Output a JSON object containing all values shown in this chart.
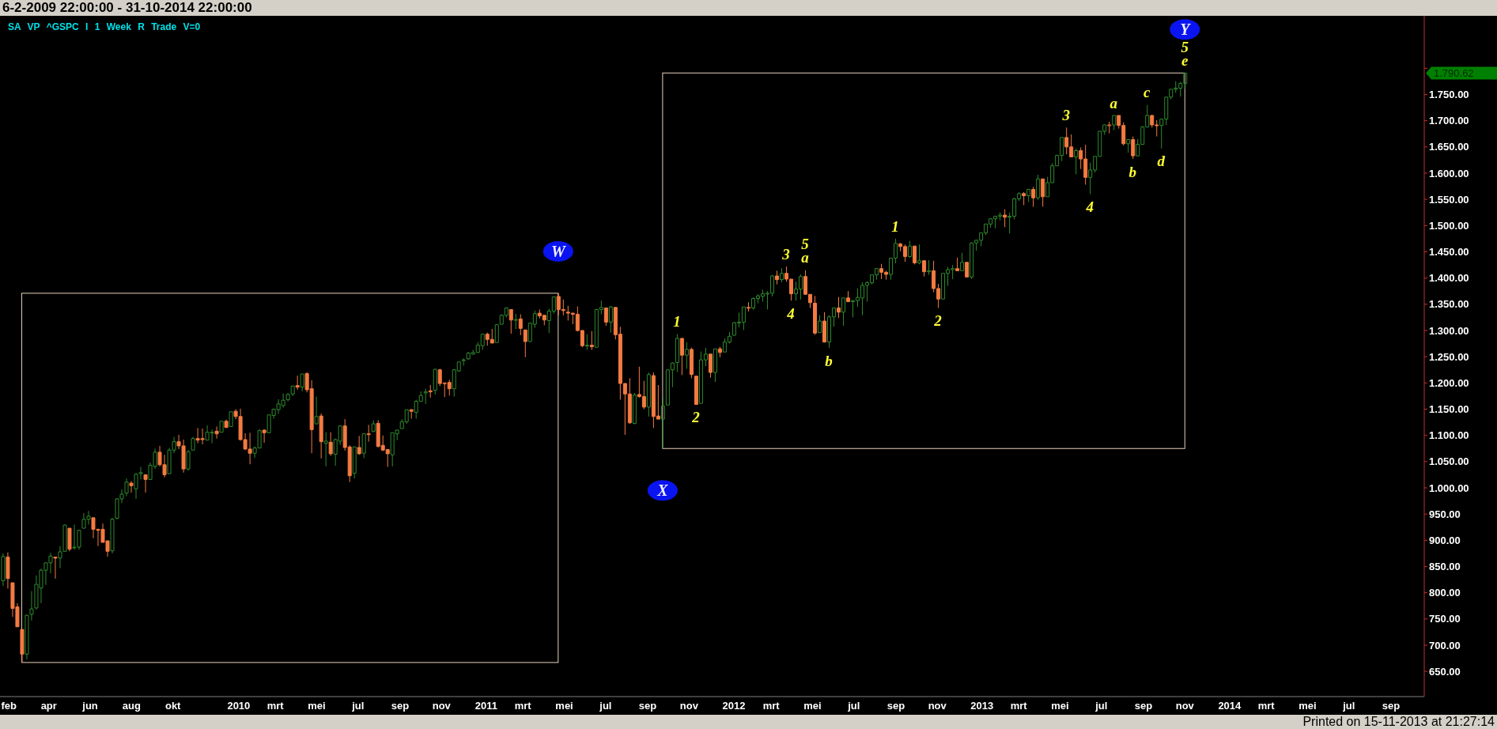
{
  "chart_data": {
    "type": "candlestick",
    "title": "6-2-2009 22:00:00 - 31-10-2014 22:00:00",
    "subtitle": "SA VP ^GSPC I 1 Week R Trade V=0",
    "x": [
      "2009-02-06",
      "2009-02-13",
      "2009-02-20",
      "2009-02-27",
      "2009-03-06",
      "2009-03-13",
      "2009-03-20",
      "2009-03-27",
      "2009-04-03",
      "2009-04-10",
      "2009-04-17",
      "2009-04-24",
      "2009-05-01",
      "2009-05-08",
      "2009-05-15",
      "2009-05-22",
      "2009-05-29",
      "2009-06-05",
      "2009-06-12",
      "2009-06-19",
      "2009-06-26",
      "2009-07-03",
      "2009-07-10",
      "2009-07-17",
      "2009-07-24",
      "2009-07-31",
      "2009-08-07",
      "2009-08-14",
      "2009-08-21",
      "2009-08-28",
      "2009-09-04",
      "2009-09-11",
      "2009-09-18",
      "2009-09-25",
      "2009-10-02",
      "2009-10-09",
      "2009-10-16",
      "2009-10-23",
      "2009-10-30",
      "2009-11-06",
      "2009-11-13",
      "2009-11-20",
      "2009-11-27",
      "2009-12-04",
      "2009-12-11",
      "2009-12-18",
      "2009-12-25",
      "2010-01-01",
      "2010-01-08",
      "2010-01-15",
      "2010-01-22",
      "2010-01-29",
      "2010-02-05",
      "2010-02-12",
      "2010-02-19",
      "2010-02-26",
      "2010-03-05",
      "2010-03-12",
      "2010-03-19",
      "2010-03-26",
      "2010-04-02",
      "2010-04-09",
      "2010-04-16",
      "2010-04-23",
      "2010-04-30",
      "2010-05-07",
      "2010-05-14",
      "2010-05-21",
      "2010-05-28",
      "2010-06-04",
      "2010-06-11",
      "2010-06-18",
      "2010-06-25",
      "2010-07-02",
      "2010-07-09",
      "2010-07-16",
      "2010-07-23",
      "2010-07-30",
      "2010-08-06",
      "2010-08-13",
      "2010-08-20",
      "2010-08-27",
      "2010-09-03",
      "2010-09-10",
      "2010-09-17",
      "2010-09-24",
      "2010-10-01",
      "2010-10-08",
      "2010-10-15",
      "2010-10-22",
      "2010-10-29",
      "2010-11-05",
      "2010-11-12",
      "2010-11-19",
      "2010-11-26",
      "2010-12-03",
      "2010-12-10",
      "2010-12-17",
      "2010-12-24",
      "2010-12-31",
      "2011-01-07",
      "2011-01-14",
      "2011-01-21",
      "2011-01-28",
      "2011-02-04",
      "2011-02-11",
      "2011-02-18",
      "2011-02-25",
      "2011-03-04",
      "2011-03-11",
      "2011-03-18",
      "2011-03-25",
      "2011-04-01",
      "2011-04-08",
      "2011-04-15",
      "2011-04-22",
      "2011-04-29",
      "2011-05-06",
      "2011-05-13",
      "2011-05-20",
      "2011-05-27",
      "2011-06-03",
      "2011-06-10",
      "2011-06-17",
      "2011-06-24",
      "2011-07-01",
      "2011-07-08",
      "2011-07-15",
      "2011-07-22",
      "2011-07-29",
      "2011-08-05",
      "2011-08-12",
      "2011-08-19",
      "2011-08-26",
      "2011-09-02",
      "2011-09-09",
      "2011-09-16",
      "2011-09-23",
      "2011-09-30",
      "2011-10-07",
      "2011-10-14",
      "2011-10-21",
      "2011-10-28",
      "2011-11-04",
      "2011-11-11",
      "2011-11-18",
      "2011-11-25",
      "2011-12-02",
      "2011-12-09",
      "2011-12-16",
      "2011-12-23",
      "2011-12-30",
      "2012-01-06",
      "2012-01-13",
      "2012-01-20",
      "2012-01-27",
      "2012-02-03",
      "2012-02-10",
      "2012-02-17",
      "2012-02-24",
      "2012-03-02",
      "2012-03-09",
      "2012-03-16",
      "2012-03-23",
      "2012-03-30",
      "2012-04-06",
      "2012-04-13",
      "2012-04-20",
      "2012-04-27",
      "2012-05-04",
      "2012-05-11",
      "2012-05-18",
      "2012-05-25",
      "2012-06-01",
      "2012-06-08",
      "2012-06-15",
      "2012-06-22",
      "2012-06-29",
      "2012-07-06",
      "2012-07-13",
      "2012-07-20",
      "2012-07-27",
      "2012-08-03",
      "2012-08-10",
      "2012-08-17",
      "2012-08-24",
      "2012-08-31",
      "2012-09-07",
      "2012-09-14",
      "2012-09-21",
      "2012-09-28",
      "2012-10-05",
      "2012-10-12",
      "2012-10-19",
      "2012-10-26",
      "2012-11-02",
      "2012-11-09",
      "2012-11-16",
      "2012-11-23",
      "2012-11-30",
      "2012-12-07",
      "2012-12-14",
      "2012-12-21",
      "2012-12-28",
      "2013-01-04",
      "2013-01-11",
      "2013-01-18",
      "2013-01-25",
      "2013-02-01",
      "2013-02-08",
      "2013-02-15",
      "2013-02-22",
      "2013-03-01",
      "2013-03-08",
      "2013-03-15",
      "2013-03-22",
      "2013-03-29",
      "2013-04-05",
      "2013-04-12",
      "2013-04-19",
      "2013-04-26",
      "2013-05-03",
      "2013-05-10",
      "2013-05-17",
      "2013-05-24",
      "2013-05-31",
      "2013-06-07",
      "2013-06-14",
      "2013-06-21",
      "2013-06-28",
      "2013-07-05",
      "2013-07-12",
      "2013-07-19",
      "2013-07-26",
      "2013-08-02",
      "2013-08-09",
      "2013-08-16",
      "2013-08-23",
      "2013-08-30",
      "2013-09-06",
      "2013-09-13",
      "2013-09-20",
      "2013-09-27",
      "2013-10-04",
      "2013-10-11",
      "2013-10-18",
      "2013-10-25",
      "2013-11-01",
      "2013-11-08",
      "2013-11-15"
    ],
    "ohlc": [
      [
        823,
        875,
        813,
        869
      ],
      [
        868,
        877,
        808,
        827
      ],
      [
        819,
        819,
        754,
        770
      ],
      [
        773,
        780,
        735,
        735
      ],
      [
        730,
        730,
        667,
        683
      ],
      [
        683,
        758,
        673,
        757
      ],
      [
        759,
        803,
        747,
        769
      ],
      [
        771,
        833,
        768,
        816
      ],
      [
        809,
        846,
        780,
        843
      ],
      [
        843,
        857,
        815,
        857
      ],
      [
        857,
        876,
        837,
        870
      ],
      [
        868,
        868,
        827,
        866
      ],
      [
        866,
        889,
        847,
        878
      ],
      [
        879,
        930,
        879,
        929
      ],
      [
        923,
        923,
        879,
        883
      ],
      [
        886,
        930,
        882,
        887
      ],
      [
        887,
        920,
        882,
        919
      ],
      [
        923,
        952,
        923,
        940
      ],
      [
        940,
        956,
        930,
        946
      ],
      [
        943,
        943,
        904,
        921
      ],
      [
        921,
        922,
        889,
        919
      ],
      [
        921,
        932,
        896,
        896
      ],
      [
        899,
        899,
        869,
        879
      ],
      [
        880,
        943,
        875,
        940
      ],
      [
        942,
        980,
        940,
        979
      ],
      [
        979,
        997,
        971,
        988
      ],
      [
        990,
        1018,
        984,
        1011
      ],
      [
        1009,
        1013,
        991,
        1004
      ],
      [
        998,
        1028,
        979,
        1026
      ],
      [
        1027,
        1040,
        1016,
        1029
      ],
      [
        1025,
        1025,
        991,
        1016
      ],
      [
        1016,
        1048,
        1016,
        1043
      ],
      [
        1041,
        1075,
        1036,
        1068
      ],
      [
        1068,
        1080,
        1041,
        1044
      ],
      [
        1044,
        1063,
        1020,
        1025
      ],
      [
        1027,
        1076,
        1027,
        1072
      ],
      [
        1072,
        1097,
        1066,
        1088
      ],
      [
        1088,
        1101,
        1074,
        1080
      ],
      [
        1080,
        1092,
        1029,
        1036
      ],
      [
        1036,
        1072,
        1033,
        1069
      ],
      [
        1072,
        1097,
        1072,
        1094
      ],
      [
        1094,
        1114,
        1085,
        1091
      ],
      [
        1094,
        1113,
        1083,
        1092
      ],
      [
        1091,
        1119,
        1091,
        1106
      ],
      [
        1105,
        1111,
        1085,
        1106
      ],
      [
        1108,
        1117,
        1094,
        1103
      ],
      [
        1106,
        1127,
        1106,
        1127
      ],
      [
        1127,
        1130,
        1115,
        1115
      ],
      [
        1117,
        1145,
        1117,
        1145
      ],
      [
        1146,
        1150,
        1131,
        1136
      ],
      [
        1136,
        1151,
        1090,
        1092
      ],
      [
        1092,
        1104,
        1072,
        1074
      ],
      [
        1074,
        1105,
        1045,
        1066
      ],
      [
        1066,
        1079,
        1057,
        1076
      ],
      [
        1076,
        1112,
        1076,
        1109
      ],
      [
        1110,
        1112,
        1086,
        1105
      ],
      [
        1105,
        1139,
        1105,
        1139
      ],
      [
        1138,
        1151,
        1132,
        1150
      ],
      [
        1149,
        1169,
        1141,
        1160
      ],
      [
        1157,
        1180,
        1153,
        1167
      ],
      [
        1168,
        1181,
        1165,
        1178
      ],
      [
        1179,
        1195,
        1175,
        1194
      ],
      [
        1195,
        1214,
        1187,
        1192
      ],
      [
        1192,
        1217,
        1184,
        1217
      ],
      [
        1218,
        1220,
        1182,
        1187
      ],
      [
        1189,
        1205,
        1066,
        1111
      ],
      [
        1122,
        1174,
        1122,
        1136
      ],
      [
        1137,
        1142,
        1056,
        1088
      ],
      [
        1085,
        1106,
        1041,
        1089
      ],
      [
        1087,
        1106,
        1061,
        1065
      ],
      [
        1064,
        1094,
        1042,
        1092
      ],
      [
        1089,
        1119,
        1082,
        1118
      ],
      [
        1118,
        1131,
        1071,
        1077
      ],
      [
        1078,
        1081,
        1011,
        1023
      ],
      [
        1028,
        1078,
        1018,
        1078
      ],
      [
        1077,
        1099,
        1063,
        1065
      ],
      [
        1066,
        1104,
        1057,
        1103
      ],
      [
        1103,
        1120,
        1088,
        1102
      ],
      [
        1108,
        1129,
        1106,
        1122
      ],
      [
        1123,
        1129,
        1077,
        1079
      ],
      [
        1081,
        1100,
        1070,
        1072
      ],
      [
        1073,
        1074,
        1040,
        1065
      ],
      [
        1063,
        1105,
        1041,
        1105
      ],
      [
        1103,
        1111,
        1091,
        1110
      ],
      [
        1113,
        1131,
        1113,
        1126
      ],
      [
        1126,
        1149,
        1122,
        1149
      ],
      [
        1149,
        1150,
        1132,
        1146
      ],
      [
        1144,
        1168,
        1132,
        1165
      ],
      [
        1165,
        1184,
        1165,
        1176
      ],
      [
        1181,
        1189,
        1160,
        1183
      ],
      [
        1185,
        1196,
        1172,
        1183
      ],
      [
        1186,
        1227,
        1178,
        1226
      ],
      [
        1225,
        1227,
        1194,
        1199
      ],
      [
        1200,
        1201,
        1173,
        1200
      ],
      [
        1201,
        1206,
        1176,
        1189
      ],
      [
        1189,
        1226,
        1174,
        1225
      ],
      [
        1223,
        1240,
        1221,
        1240
      ],
      [
        1243,
        1247,
        1233,
        1244
      ],
      [
        1246,
        1259,
        1244,
        1257
      ],
      [
        1255,
        1263,
        1254,
        1258
      ],
      [
        1258,
        1278,
        1258,
        1272
      ],
      [
        1271,
        1293,
        1263,
        1293
      ],
      [
        1293,
        1296,
        1271,
        1283
      ],
      [
        1283,
        1303,
        1276,
        1276
      ],
      [
        1277,
        1311,
        1277,
        1311
      ],
      [
        1312,
        1331,
        1312,
        1329
      ],
      [
        1329,
        1344,
        1325,
        1343
      ],
      [
        1340,
        1340,
        1294,
        1320
      ],
      [
        1320,
        1332,
        1303,
        1321
      ],
      [
        1322,
        1331,
        1291,
        1304
      ],
      [
        1301,
        1301,
        1249,
        1279
      ],
      [
        1279,
        1315,
        1279,
        1314
      ],
      [
        1312,
        1338,
        1305,
        1332
      ],
      [
        1333,
        1340,
        1323,
        1328
      ],
      [
        1329,
        1329,
        1310,
        1320
      ],
      [
        1319,
        1341,
        1295,
        1337
      ],
      [
        1337,
        1365,
        1332,
        1364
      ],
      [
        1365,
        1371,
        1329,
        1340
      ],
      [
        1340,
        1359,
        1329,
        1338
      ],
      [
        1335,
        1347,
        1319,
        1333
      ],
      [
        1333,
        1334,
        1312,
        1331
      ],
      [
        1331,
        1346,
        1298,
        1300
      ],
      [
        1300,
        1300,
        1268,
        1271
      ],
      [
        1271,
        1293,
        1263,
        1272
      ],
      [
        1272,
        1299,
        1263,
        1269
      ],
      [
        1268,
        1341,
        1268,
        1340
      ],
      [
        1340,
        1357,
        1331,
        1344
      ],
      [
        1343,
        1343,
        1309,
        1316
      ],
      [
        1316,
        1347,
        1296,
        1345
      ],
      [
        1344,
        1344,
        1283,
        1292
      ],
      [
        1293,
        1307,
        1168,
        1199
      ],
      [
        1199,
        1199,
        1101,
        1179
      ],
      [
        1179,
        1209,
        1122,
        1124
      ],
      [
        1123,
        1181,
        1121,
        1177
      ],
      [
        1178,
        1231,
        1172,
        1174
      ],
      [
        1174,
        1204,
        1150,
        1154
      ],
      [
        1154,
        1220,
        1136,
        1216
      ],
      [
        1214,
        1220,
        1114,
        1136
      ],
      [
        1137,
        1196,
        1131,
        1131
      ],
      [
        1131,
        1171,
        1075,
        1156
      ],
      [
        1158,
        1225,
        1158,
        1225
      ],
      [
        1225,
        1239,
        1192,
        1238
      ],
      [
        1239,
        1293,
        1221,
        1285
      ],
      [
        1285,
        1285,
        1215,
        1253
      ],
      [
        1253,
        1278,
        1227,
        1264
      ],
      [
        1264,
        1267,
        1209,
        1216
      ],
      [
        1213,
        1213,
        1159,
        1159
      ],
      [
        1161,
        1260,
        1161,
        1244
      ],
      [
        1244,
        1267,
        1232,
        1255
      ],
      [
        1255,
        1255,
        1210,
        1220
      ],
      [
        1220,
        1265,
        1202,
        1265
      ],
      [
        1265,
        1269,
        1249,
        1258
      ],
      [
        1259,
        1285,
        1259,
        1278
      ],
      [
        1278,
        1297,
        1275,
        1289
      ],
      [
        1291,
        1316,
        1290,
        1315
      ],
      [
        1315,
        1334,
        1306,
        1316
      ],
      [
        1316,
        1345,
        1301,
        1345
      ],
      [
        1344,
        1354,
        1336,
        1343
      ],
      [
        1343,
        1363,
        1340,
        1361
      ],
      [
        1361,
        1369,
        1352,
        1366
      ],
      [
        1365,
        1378,
        1355,
        1370
      ],
      [
        1370,
        1375,
        1340,
        1371
      ],
      [
        1371,
        1406,
        1365,
        1404
      ],
      [
        1404,
        1414,
        1388,
        1397
      ],
      [
        1397,
        1419,
        1392,
        1409
      ],
      [
        1409,
        1422,
        1393,
        1398
      ],
      [
        1398,
        1398,
        1357,
        1370
      ],
      [
        1370,
        1393,
        1357,
        1379
      ],
      [
        1379,
        1407,
        1359,
        1403
      ],
      [
        1403,
        1415,
        1368,
        1369
      ],
      [
        1369,
        1369,
        1343,
        1353
      ],
      [
        1352,
        1366,
        1292,
        1295
      ],
      [
        1296,
        1329,
        1296,
        1318
      ],
      [
        1318,
        1335,
        1277,
        1278
      ],
      [
        1278,
        1329,
        1267,
        1326
      ],
      [
        1326,
        1343,
        1307,
        1343
      ],
      [
        1343,
        1364,
        1324,
        1335
      ],
      [
        1335,
        1362,
        1309,
        1362
      ],
      [
        1362,
        1375,
        1354,
        1355
      ],
      [
        1355,
        1358,
        1325,
        1357
      ],
      [
        1357,
        1380,
        1345,
        1363
      ],
      [
        1362,
        1392,
        1329,
        1386
      ],
      [
        1386,
        1394,
        1355,
        1391
      ],
      [
        1391,
        1406,
        1388,
        1406
      ],
      [
        1406,
        1419,
        1397,
        1418
      ],
      [
        1418,
        1427,
        1398,
        1411
      ],
      [
        1411,
        1414,
        1397,
        1407
      ],
      [
        1407,
        1438,
        1397,
        1438
      ],
      [
        1438,
        1475,
        1428,
        1466
      ],
      [
        1465,
        1467,
        1451,
        1460
      ],
      [
        1460,
        1464,
        1431,
        1441
      ],
      [
        1441,
        1471,
        1439,
        1461
      ],
      [
        1461,
        1461,
        1426,
        1429
      ],
      [
        1429,
        1464,
        1426,
        1433
      ],
      [
        1433,
        1434,
        1403,
        1412
      ],
      [
        1412,
        1434,
        1406,
        1414
      ],
      [
        1414,
        1433,
        1373,
        1380
      ],
      [
        1380,
        1389,
        1343,
        1360
      ],
      [
        1360,
        1409,
        1360,
        1409
      ],
      [
        1409,
        1421,
        1385,
        1416
      ],
      [
        1416,
        1425,
        1398,
        1418
      ],
      [
        1418,
        1439,
        1413,
        1414
      ],
      [
        1414,
        1448,
        1414,
        1430
      ],
      [
        1430,
        1430,
        1402,
        1402
      ],
      [
        1402,
        1468,
        1398,
        1467
      ],
      [
        1467,
        1473,
        1452,
        1472
      ],
      [
        1472,
        1486,
        1461,
        1486
      ],
      [
        1486,
        1503,
        1482,
        1503
      ],
      [
        1503,
        1514,
        1496,
        1513
      ],
      [
        1513,
        1518,
        1495,
        1518
      ],
      [
        1518,
        1525,
        1510,
        1520
      ],
      [
        1520,
        1531,
        1497,
        1516
      ],
      [
        1516,
        1525,
        1485,
        1518
      ],
      [
        1518,
        1553,
        1512,
        1551
      ],
      [
        1551,
        1564,
        1547,
        1561
      ],
      [
        1561,
        1564,
        1539,
        1557
      ],
      [
        1557,
        1570,
        1545,
        1569
      ],
      [
        1569,
        1574,
        1536,
        1553
      ],
      [
        1553,
        1597,
        1549,
        1589
      ],
      [
        1589,
        1589,
        1536,
        1555
      ],
      [
        1555,
        1593,
        1555,
        1582
      ],
      [
        1582,
        1619,
        1581,
        1614
      ],
      [
        1614,
        1635,
        1614,
        1634
      ],
      [
        1634,
        1668,
        1623,
        1668
      ],
      [
        1668,
        1687,
        1636,
        1650
      ],
      [
        1650,
        1674,
        1631,
        1631
      ],
      [
        1631,
        1647,
        1598,
        1643
      ],
      [
        1643,
        1649,
        1608,
        1627
      ],
      [
        1627,
        1654,
        1578,
        1592
      ],
      [
        1592,
        1620,
        1560,
        1606
      ],
      [
        1606,
        1632,
        1601,
        1632
      ],
      [
        1632,
        1680,
        1632,
        1680
      ],
      [
        1680,
        1693,
        1673,
        1692
      ],
      [
        1692,
        1698,
        1676,
        1692
      ],
      [
        1692,
        1710,
        1682,
        1710
      ],
      [
        1710,
        1710,
        1685,
        1691
      ],
      [
        1691,
        1697,
        1653,
        1656
      ],
      [
        1656,
        1665,
        1639,
        1664
      ],
      [
        1664,
        1670,
        1627,
        1633
      ],
      [
        1633,
        1665,
        1633,
        1655
      ],
      [
        1655,
        1690,
        1655,
        1688
      ],
      [
        1688,
        1730,
        1688,
        1710
      ],
      [
        1710,
        1711,
        1687,
        1692
      ],
      [
        1692,
        1701,
        1670,
        1691
      ],
      [
        1691,
        1704,
        1647,
        1703
      ],
      [
        1703,
        1745,
        1692,
        1745
      ],
      [
        1745,
        1760,
        1741,
        1760
      ],
      [
        1760,
        1775,
        1753,
        1762
      ],
      [
        1762,
        1774,
        1746,
        1771
      ],
      [
        1771,
        1791,
        1761,
        1790.62
      ]
    ],
    "colors": [
      "#2e8b2e",
      "#f47b42",
      "#f47b42",
      "#f47b42",
      "#f47b42",
      "#2e8b2e",
      "#2e8b2e",
      "#2e8b2e",
      "#2e8b2e",
      "#2e8b2e",
      "#2e8b2e",
      "#f47b42",
      "#2e8b2e",
      "#2e8b2e",
      "#f47b42",
      "#2e8b2e",
      "#2e8b2e",
      "#2e8b2e",
      "#2e8b2e",
      "#f47b42",
      "#f47b42",
      "#f47b42",
      "#f47b42",
      "#2e8b2e",
      "#2e8b2e",
      "#2e8b2e",
      "#2e8b2e",
      "#f47b42",
      "#2e8b2e",
      "#2e8b2e",
      "#f47b42",
      "#2e8b2e",
      "#2e8b2e",
      "#f47b42",
      "#f47b42",
      "#2e8b2e",
      "#2e8b2e",
      "#f47b42",
      "#f47b42",
      "#2e8b2e",
      "#2e8b2e",
      "#f47b42",
      "#f47b42",
      "#2e8b2e",
      "#2e8b2e",
      "#f47b42",
      "#2e8b2e",
      "#f47b42",
      "#2e8b2e",
      "#f47b42",
      "#f47b42",
      "#f47b42",
      "#f47b42",
      "#2e8b2e",
      "#2e8b2e",
      "#f47b42",
      "#2e8b2e",
      "#2e8b2e",
      "#2e8b2e",
      "#2e8b2e",
      "#2e8b2e",
      "#2e8b2e",
      "#f47b42",
      "#2e8b2e",
      "#f47b42",
      "#f47b42",
      "#2e8b2e",
      "#f47b42",
      "#2e8b2e",
      "#f47b42",
      "#2e8b2e",
      "#2e8b2e",
      "#f47b42",
      "#f47b42",
      "#2e8b2e",
      "#f47b42",
      "#2e8b2e",
      "#f47b42",
      "#2e8b2e",
      "#f47b42",
      "#f47b42",
      "#f47b42",
      "#2e8b2e",
      "#2e8b2e",
      "#2e8b2e",
      "#2e8b2e",
      "#f47b42",
      "#2e8b2e",
      "#2e8b2e",
      "#2e8b2e",
      "#f47b42",
      "#2e8b2e",
      "#f47b42",
      "#f47b42",
      "#f47b42",
      "#2e8b2e",
      "#2e8b2e",
      "#2e8b2e",
      "#2e8b2e",
      "#2e8b2e",
      "#2e8b2e",
      "#2e8b2e",
      "#f47b42",
      "#f47b42",
      "#2e8b2e",
      "#2e8b2e",
      "#2e8b2e",
      "#f47b42",
      "#2e8b2e",
      "#f47b42",
      "#f47b42",
      "#2e8b2e",
      "#2e8b2e",
      "#f47b42",
      "#f47b42",
      "#2e8b2e",
      "#2e8b2e",
      "#f47b42",
      "#f47b42",
      "#f47b42",
      "#f47b42",
      "#f47b42",
      "#f47b42",
      "#2e8b2e",
      "#f47b42",
      "#2e8b2e",
      "#2e8b2e",
      "#f47b42",
      "#2e8b2e",
      "#f47b42",
      "#f47b42",
      "#f47b42",
      "#f47b42",
      "#2e8b2e",
      "#f47b42",
      "#f47b42",
      "#2e8b2e",
      "#f47b42",
      "#f47b42",
      "#2e8b2e",
      "#2e8b2e",
      "#2e8b2e",
      "#2e8b2e",
      "#f47b42",
      "#2e8b2e",
      "#f47b42",
      "#f47b42",
      "#2e8b2e",
      "#2e8b2e",
      "#f47b42",
      "#2e8b2e",
      "#f47b42",
      "#2e8b2e",
      "#2e8b2e",
      "#2e8b2e",
      "#2e8b2e",
      "#2e8b2e",
      "#f47b42",
      "#2e8b2e",
      "#2e8b2e",
      "#2e8b2e",
      "#2e8b2e",
      "#2e8b2e",
      "#f47b42",
      "#2e8b2e",
      "#f47b42",
      "#f47b42",
      "#2e8b2e",
      "#2e8b2e",
      "#f47b42",
      "#f47b42",
      "#f47b42",
      "#2e8b2e",
      "#f47b42",
      "#2e8b2e",
      "#2e8b2e",
      "#f47b42",
      "#2e8b2e",
      "#f47b42",
      "#2e8b2e",
      "#2e8b2e",
      "#2e8b2e",
      "#2e8b2e",
      "#2e8b2e",
      "#2e8b2e",
      "#f47b42",
      "#f47b42",
      "#2e8b2e",
      "#2e8b2e",
      "#f47b42",
      "#f47b42",
      "#2e8b2e",
      "#f47b42",
      "#2e8b2e",
      "#f47b42",
      "#2e8b2e",
      "#f47b42",
      "#f47b42",
      "#2e8b2e",
      "#2e8b2e",
      "#2e8b2e",
      "#f47b42",
      "#2e8b2e",
      "#f47b42",
      "#2e8b2e",
      "#2e8b2e",
      "#2e8b2e",
      "#2e8b2e",
      "#2e8b2e",
      "#2e8b2e",
      "#2e8b2e",
      "#f47b42",
      "#2e8b2e",
      "#2e8b2e",
      "#2e8b2e",
      "#f47b42",
      "#2e8b2e",
      "#f47b42",
      "#2e8b2e",
      "#f47b42",
      "#2e8b2e",
      "#2e8b2e",
      "#2e8b2e",
      "#2e8b2e",
      "#f47b42",
      "#f47b42",
      "#2e8b2e",
      "#f47b42",
      "#f47b42",
      "#2e8b2e",
      "#2e8b2e",
      "#2e8b2e",
      "#2e8b2e",
      "#f47b42",
      "#2e8b2e",
      "#f47b42",
      "#f47b42",
      "#2e8b2e",
      "#f47b42",
      "#2e8b2e",
      "#2e8b2e",
      "#2e8b2e",
      "#f47b42",
      "#f47b42",
      "#2e8b2e",
      "#2e8b2e",
      "#2e8b2e",
      "#2e8b2e",
      "#2e8b2e",
      "#2e8b2e"
    ],
    "xlim": [
      "2009-02-02",
      "2014-11-03"
    ],
    "xticks": [
      {
        "value": "2009-02-15",
        "label": "feb"
      },
      {
        "value": "2009-04-15",
        "label": "apr"
      },
      {
        "value": "2009-06-15",
        "label": "jun"
      },
      {
        "value": "2009-08-15",
        "label": "aug"
      },
      {
        "value": "2009-10-15",
        "label": "okt"
      },
      {
        "value": "2010-01-20",
        "label": "2010"
      },
      {
        "value": "2010-03-15",
        "label": "mrt"
      },
      {
        "value": "2010-05-15",
        "label": "mei"
      },
      {
        "value": "2010-07-15",
        "label": "jul"
      },
      {
        "value": "2010-09-15",
        "label": "sep"
      },
      {
        "value": "2010-11-15",
        "label": "nov"
      },
      {
        "value": "2011-01-20",
        "label": "2011"
      },
      {
        "value": "2011-03-15",
        "label": "mrt"
      },
      {
        "value": "2011-05-15",
        "label": "mei"
      },
      {
        "value": "2011-07-15",
        "label": "jul"
      },
      {
        "value": "2011-09-15",
        "label": "sep"
      },
      {
        "value": "2011-11-15",
        "label": "nov"
      },
      {
        "value": "2012-01-20",
        "label": "2012"
      },
      {
        "value": "2012-03-15",
        "label": "mrt"
      },
      {
        "value": "2012-05-15",
        "label": "mei"
      },
      {
        "value": "2012-07-15",
        "label": "jul"
      },
      {
        "value": "2012-09-15",
        "label": "sep"
      },
      {
        "value": "2012-11-15",
        "label": "nov"
      },
      {
        "value": "2013-01-20",
        "label": "2013"
      },
      {
        "value": "2013-03-15",
        "label": "mrt"
      },
      {
        "value": "2013-05-15",
        "label": "mei"
      },
      {
        "value": "2013-07-15",
        "label": "jul"
      },
      {
        "value": "2013-09-15",
        "label": "sep"
      },
      {
        "value": "2013-11-15",
        "label": "nov"
      },
      {
        "value": "2014-01-20",
        "label": "2014"
      },
      {
        "value": "2014-03-15",
        "label": "mrt"
      },
      {
        "value": "2014-05-15",
        "label": "mei"
      },
      {
        "value": "2014-07-15",
        "label": "jul"
      },
      {
        "value": "2014-09-15",
        "label": "sep"
      }
    ],
    "ylim": [
      602,
      1900
    ],
    "yticks": [
      {
        "value": 650,
        "label": "650.00"
      },
      {
        "value": 700,
        "label": "700.00"
      },
      {
        "value": 750,
        "label": "750.00"
      },
      {
        "value": 800,
        "label": "800.00"
      },
      {
        "value": 850,
        "label": "850.00"
      },
      {
        "value": 900,
        "label": "900.00"
      },
      {
        "value": 950,
        "label": "950.00"
      },
      {
        "value": 1000,
        "label": "1.000.00"
      },
      {
        "value": 1050,
        "label": "1.050.00"
      },
      {
        "value": 1100,
        "label": "1.100.00"
      },
      {
        "value": 1150,
        "label": "1.150.00"
      },
      {
        "value": 1200,
        "label": "1.200.00"
      },
      {
        "value": 1250,
        "label": "1.250.00"
      },
      {
        "value": 1300,
        "label": "1.300.00"
      },
      {
        "value": 1350,
        "label": "1.350.00"
      },
      {
        "value": 1400,
        "label": "1.400.00"
      },
      {
        "value": 1450,
        "label": "1.450.00"
      },
      {
        "value": 1500,
        "label": "1.500.00"
      },
      {
        "value": 1550,
        "label": "1.550.00"
      },
      {
        "value": 1600,
        "label": "1.600.00"
      },
      {
        "value": 1650,
        "label": "1.650.00"
      },
      {
        "value": 1700,
        "label": "1.700.00"
      },
      {
        "value": 1750,
        "label": "1.750.00"
      },
      {
        "value": 1800,
        "label": null
      }
    ],
    "annotations": [
      {
        "text": "W",
        "x": "2011-05-06",
        "y": 1371
      },
      {
        "text": "X",
        "x": "2011-10-07",
        "y": 1075
      },
      {
        "text": "Y",
        "x": "2013-11-15",
        "y": 1791
      },
      {
        "text": "e",
        "x": "2013-11-15",
        "y": 1791
      },
      {
        "text": "5",
        "x": "2013-11-15",
        "y": 1791
      },
      {
        "text": "1",
        "x": "2011-10-28",
        "y": 1293
      },
      {
        "text": "2",
        "x": "2011-11-25",
        "y": 1159
      },
      {
        "text": "3",
        "x": "2012-04-06",
        "y": 1422
      },
      {
        "text": "a",
        "x": "2012-05-04",
        "y": 1415
      },
      {
        "text": "5",
        "x": "2012-05-04",
        "y": 1415
      },
      {
        "text": "4",
        "x": "2012-04-13",
        "y": 1357
      },
      {
        "text": "b",
        "x": "2012-06-08",
        "y": 1267
      },
      {
        "text": "1",
        "x": "2012-09-14",
        "y": 1475
      },
      {
        "text": "2",
        "x": "2012-11-16",
        "y": 1343
      },
      {
        "text": "3",
        "x": "2013-05-24",
        "y": 1687
      },
      {
        "text": "4",
        "x": "2013-06-28",
        "y": 1560
      },
      {
        "text": "a",
        "x": "2013-08-02",
        "y": 1710
      },
      {
        "text": "b",
        "x": "2013-08-30",
        "y": 1627
      },
      {
        "text": "c",
        "x": "2013-09-20",
        "y": 1730
      },
      {
        "text": "d",
        "x": "2013-10-11",
        "y": 1647
      },
      "1.790.62",
      "Printed on 15-11-2013 at 21:27:14"
    ]
  }
}
